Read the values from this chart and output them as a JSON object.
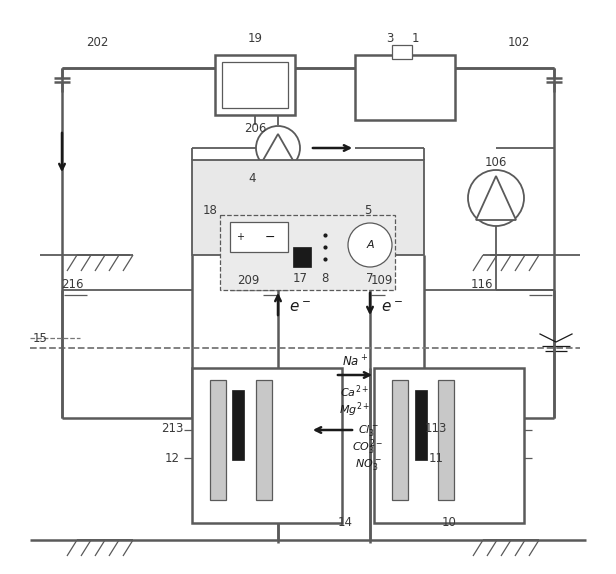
{
  "figsize": [
    6.16,
    5.74
  ],
  "dpi": 100,
  "lc": "#5a5a5a",
  "dc": "#1a1a1a",
  "gc": "#888888",
  "lw": 1.3,
  "lw_thick": 1.8,
  "lw_thin": 0.9,
  "gray_fill": "#cccccc",
  "white": "#ffffff",
  "light_gray": "#e8e8e8"
}
